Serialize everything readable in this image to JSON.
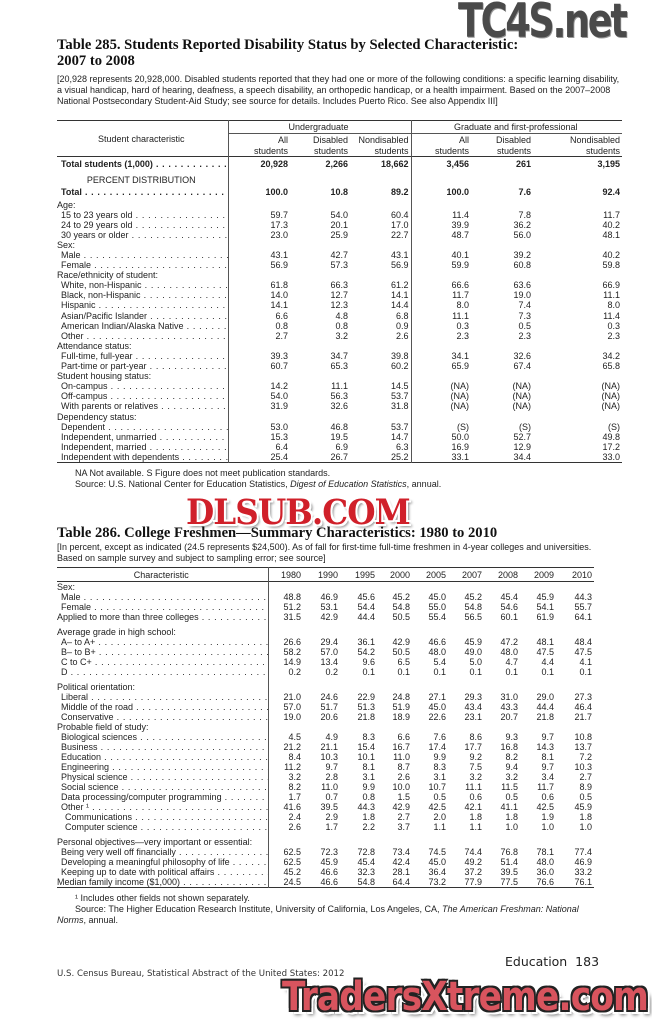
{
  "watermarks": {
    "top": "TC4S.net",
    "middle": "DLSUB.COM",
    "bottom": "TradersXtreme.com"
  },
  "t285": {
    "title_line1": "Table 285. Students Reported Disability Status by Selected Characteristic:",
    "title_line2": "2007 to 2008",
    "note": "[20,928 represents 20,928,000. Disabled students reported that they had one or more of the following conditions: a specific learning disability, a visual handicap, hard of hearing, deafness, a speech disability, an orthopedic handicap, or a health impairment. Based on the 2007–2008 National Postsecondary Student-Aid Study; see source for details. Includes Puerto Rico. See also Appendix III]",
    "header": {
      "stub": "Student characteristic",
      "groups": [
        "Undergraduate",
        "Graduate and first-professional"
      ],
      "columns": [
        "All\nstudents",
        "Disabled\nstudents",
        "Nondisabled\nstudents",
        "All\nstudents",
        "Disabled\nstudents",
        "Nondisabled\nstudents"
      ]
    },
    "sections": [
      {
        "rows": [
          {
            "kind": "data",
            "label": "Total students (1,000)",
            "indent": 0,
            "emphasis": true,
            "values": [
              "20,928",
              "2,266",
              "18,662",
              "3,456",
              "261",
              "3,195"
            ]
          },
          {
            "kind": "center",
            "label": "PERCENT DISTRIBUTION"
          },
          {
            "kind": "data",
            "label": "Total",
            "indent": 0,
            "emphasis": true,
            "values": [
              "100.0",
              "10.8",
              "89.2",
              "100.0",
              "7.6",
              "92.4"
            ]
          },
          {
            "kind": "group",
            "label": "Age:"
          },
          {
            "kind": "data",
            "label": "15 to 23 years old",
            "indent": 1,
            "values": [
              "59.7",
              "54.0",
              "60.4",
              "11.4",
              "7.8",
              "11.7"
            ]
          },
          {
            "kind": "data",
            "label": "24 to 29 years old",
            "indent": 1,
            "values": [
              "17.3",
              "20.1",
              "17.0",
              "39.9",
              "36.2",
              "40.2"
            ]
          },
          {
            "kind": "data",
            "label": "30 years or older",
            "indent": 1,
            "values": [
              "23.0",
              "25.9",
              "22.7",
              "48.7",
              "56.0",
              "48.1"
            ]
          },
          {
            "kind": "group",
            "label": "Sex:"
          },
          {
            "kind": "data",
            "label": "Male",
            "indent": 1,
            "values": [
              "43.1",
              "42.7",
              "43.1",
              "40.1",
              "39.2",
              "40.2"
            ]
          },
          {
            "kind": "data",
            "label": "Female",
            "indent": 1,
            "values": [
              "56.9",
              "57.3",
              "56.9",
              "59.9",
              "60.8",
              "59.8"
            ]
          },
          {
            "kind": "group",
            "label": "Race/ethnicity of student:"
          },
          {
            "kind": "data",
            "label": "White, non-Hispanic",
            "indent": 1,
            "values": [
              "61.8",
              "66.3",
              "61.2",
              "66.6",
              "63.6",
              "66.9"
            ]
          },
          {
            "kind": "data",
            "label": "Black, non-Hispanic",
            "indent": 1,
            "values": [
              "14.0",
              "12.7",
              "14.1",
              "11.7",
              "19.0",
              "11.1"
            ]
          },
          {
            "kind": "data",
            "label": "Hispanic",
            "indent": 1,
            "values": [
              "14.1",
              "12.3",
              "14.4",
              "8.0",
              "7.4",
              "8.0"
            ]
          },
          {
            "kind": "data",
            "label": "Asian/Pacific Islander",
            "indent": 1,
            "values": [
              "6.6",
              "4.8",
              "6.8",
              "11.1",
              "7.3",
              "11.4"
            ]
          },
          {
            "kind": "data",
            "label": "American Indian/Alaska Native",
            "indent": 1,
            "values": [
              "0.8",
              "0.8",
              "0.9",
              "0.3",
              "0.5",
              "0.3"
            ]
          },
          {
            "kind": "data",
            "label": "Other",
            "indent": 1,
            "values": [
              "2.7",
              "3.2",
              "2.6",
              "2.3",
              "2.3",
              "2.3"
            ]
          },
          {
            "kind": "group",
            "label": "Attendance status:"
          },
          {
            "kind": "data",
            "label": "Full-time, full-year",
            "indent": 1,
            "values": [
              "39.3",
              "34.7",
              "39.8",
              "34.1",
              "32.6",
              "34.2"
            ]
          },
          {
            "kind": "data",
            "label": "Part-time or part-year",
            "indent": 1,
            "values": [
              "60.7",
              "65.3",
              "60.2",
              "65.9",
              "67.4",
              "65.8"
            ]
          },
          {
            "kind": "group",
            "label": "Student housing status:"
          },
          {
            "kind": "data",
            "label": "On-campus",
            "indent": 1,
            "values": [
              "14.2",
              "11.1",
              "14.5",
              "(NA)",
              "(NA)",
              "(NA)"
            ]
          },
          {
            "kind": "data",
            "label": "Off-campus",
            "indent": 1,
            "values": [
              "54.0",
              "56.3",
              "53.7",
              "(NA)",
              "(NA)",
              "(NA)"
            ]
          },
          {
            "kind": "data",
            "label": "With parents or relatives",
            "indent": 1,
            "values": [
              "31.9",
              "32.6",
              "31.8",
              "(NA)",
              "(NA)",
              "(NA)"
            ]
          },
          {
            "kind": "group",
            "label": "Dependency status:"
          },
          {
            "kind": "data",
            "label": "Dependent",
            "indent": 1,
            "values": [
              "53.0",
              "46.8",
              "53.7",
              "(S)",
              "(S)",
              "(S)"
            ]
          },
          {
            "kind": "data",
            "label": "Independent, unmarried",
            "indent": 1,
            "values": [
              "15.3",
              "19.5",
              "14.7",
              "50.0",
              "52.7",
              "49.8"
            ]
          },
          {
            "kind": "data",
            "label": "Independent, married",
            "indent": 1,
            "values": [
              "6.4",
              "6.9",
              "6.3",
              "16.9",
              "12.9",
              "17.2"
            ]
          },
          {
            "kind": "data",
            "label": "Independent with dependents",
            "indent": 1,
            "values": [
              "25.4",
              "26.7",
              "25.2",
              "33.1",
              "34.4",
              "33.0"
            ]
          }
        ]
      }
    ],
    "footnotes": {
      "na": "NA Not available. S Figure does not meet publication standards.",
      "source_prefix": "Source: U.S. National Center for Education Statistics, ",
      "source_italic": "Digest of Education Statistics",
      "source_suffix": ", annual."
    }
  },
  "t286": {
    "title": "Table 286. College Freshmen—Summary Characteristics: 1980 to 2010",
    "note": "[In percent, except as indicated (24.5 represents $24,500). As of fall for first-time full-time freshmen in 4-year colleges and universities. Based on sample survey and subject to sampling error; see source]",
    "header": {
      "stub": "Characteristic",
      "columns": [
        "1980",
        "1990",
        "1995",
        "2000",
        "2005",
        "2007",
        "2008",
        "2009",
        "2010"
      ]
    },
    "sections": [
      {
        "rows": [
          {
            "kind": "group",
            "label": "Sex:"
          },
          {
            "kind": "data",
            "label": "Male",
            "indent": 1,
            "values": [
              "48.8",
              "46.9",
              "45.6",
              "45.2",
              "45.0",
              "45.2",
              "45.4",
              "45.9",
              "44.3"
            ]
          },
          {
            "kind": "data",
            "label": "Female",
            "indent": 1,
            "values": [
              "51.2",
              "53.1",
              "54.4",
              "54.8",
              "55.0",
              "54.8",
              "54.6",
              "54.1",
              "55.7"
            ]
          },
          {
            "kind": "data",
            "label": "Applied to more than three colleges",
            "indent": 0,
            "values": [
              "31.5",
              "42.9",
              "44.4",
              "50.5",
              "55.4",
              "56.5",
              "60.1",
              "61.9",
              "64.1"
            ]
          }
        ]
      },
      {
        "rows": [
          {
            "kind": "group",
            "label": "Average grade in high school:"
          },
          {
            "kind": "data",
            "label": "A– to A+",
            "indent": 1,
            "values": [
              "26.6",
              "29.4",
              "36.1",
              "42.9",
              "46.6",
              "45.9",
              "47.2",
              "48.1",
              "48.4"
            ]
          },
          {
            "kind": "data",
            "label": "B– to B+",
            "indent": 1,
            "values": [
              "58.2",
              "57.0",
              "54.2",
              "50.5",
              "48.0",
              "49.0",
              "48.0",
              "47.5",
              "47.5"
            ]
          },
          {
            "kind": "data",
            "label": "C to C+",
            "indent": 1,
            "values": [
              "14.9",
              "13.4",
              "9.6",
              "6.5",
              "5.4",
              "5.0",
              "4.7",
              "4.4",
              "4.1"
            ]
          },
          {
            "kind": "data",
            "label": "D",
            "indent": 1,
            "values": [
              "0.2",
              "0.2",
              "0.1",
              "0.1",
              "0.1",
              "0.1",
              "0.1",
              "0.1",
              "0.1"
            ]
          }
        ]
      },
      {
        "rows": [
          {
            "kind": "group",
            "label": "Political orientation:"
          },
          {
            "kind": "data",
            "label": "Liberal",
            "indent": 1,
            "values": [
              "21.0",
              "24.6",
              "22.9",
              "24.8",
              "27.1",
              "29.3",
              "31.0",
              "29.0",
              "27.3"
            ]
          },
          {
            "kind": "data",
            "label": "Middle of the road",
            "indent": 1,
            "values": [
              "57.0",
              "51.7",
              "51.3",
              "51.9",
              "45.0",
              "43.4",
              "43.3",
              "44.4",
              "46.4"
            ]
          },
          {
            "kind": "data",
            "label": "Conservative",
            "indent": 1,
            "values": [
              "19.0",
              "20.6",
              "21.8",
              "18.9",
              "22.6",
              "23.1",
              "20.7",
              "21.8",
              "21.7"
            ]
          },
          {
            "kind": "group",
            "label": "Probable field of study:"
          },
          {
            "kind": "data",
            "label": "Biological sciences",
            "indent": 1,
            "values": [
              "4.5",
              "4.9",
              "8.3",
              "6.6",
              "7.6",
              "8.6",
              "9.3",
              "9.7",
              "10.8"
            ]
          },
          {
            "kind": "data",
            "label": "Business",
            "indent": 1,
            "values": [
              "21.2",
              "21.1",
              "15.4",
              "16.7",
              "17.4",
              "17.7",
              "16.8",
              "14.3",
              "13.7"
            ]
          },
          {
            "kind": "data",
            "label": "Education",
            "indent": 1,
            "values": [
              "8.4",
              "10.3",
              "10.1",
              "11.0",
              "9.9",
              "9.2",
              "8.2",
              "8.1",
              "7.2"
            ]
          },
          {
            "kind": "data",
            "label": "Engineering",
            "indent": 1,
            "values": [
              "11.2",
              "9.7",
              "8.1",
              "8.7",
              "8.3",
              "7.5",
              "9.4",
              "9.7",
              "10.3"
            ]
          },
          {
            "kind": "data",
            "label": "Physical science",
            "indent": 1,
            "values": [
              "3.2",
              "2.8",
              "3.1",
              "2.6",
              "3.1",
              "3.2",
              "3.2",
              "3.4",
              "2.7"
            ]
          },
          {
            "kind": "data",
            "label": "Social science",
            "indent": 1,
            "values": [
              "8.2",
              "11.0",
              "9.9",
              "10.0",
              "10.7",
              "11.1",
              "11.5",
              "11.7",
              "8.9"
            ]
          },
          {
            "kind": "data",
            "label": "Data processing/computer programming",
            "indent": 1,
            "values": [
              "1.7",
              "0.7",
              "0.8",
              "1.5",
              "0.5",
              "0.6",
              "0.5",
              "0.6",
              "0.5"
            ]
          },
          {
            "kind": "data",
            "label": "Other ¹",
            "indent": 1,
            "values": [
              "41.6",
              "39.5",
              "44.3",
              "42.9",
              "42.5",
              "42.1",
              "41.1",
              "42.5",
              "45.9"
            ]
          },
          {
            "kind": "data",
            "label": "Communications",
            "indent": 2,
            "values": [
              "2.4",
              "2.9",
              "1.8",
              "2.7",
              "2.0",
              "1.8",
              "1.8",
              "1.9",
              "1.8"
            ]
          },
          {
            "kind": "data",
            "label": "Computer science",
            "indent": 2,
            "values": [
              "2.6",
              "1.7",
              "2.2",
              "3.7",
              "1.1",
              "1.1",
              "1.0",
              "1.0",
              "1.0"
            ]
          }
        ]
      },
      {
        "rows": [
          {
            "kind": "group",
            "label": "Personal objectives—very important or essential:"
          },
          {
            "kind": "data",
            "label": "Being very well off financially",
            "indent": 1,
            "values": [
              "62.5",
              "72.3",
              "72.8",
              "73.4",
              "74.5",
              "74.4",
              "76.8",
              "78.1",
              "77.4"
            ]
          },
          {
            "kind": "data",
            "label": "Developing a meaningful philosophy of life",
            "indent": 1,
            "values": [
              "62.5",
              "45.9",
              "45.4",
              "42.4",
              "45.0",
              "49.2",
              "51.4",
              "48.0",
              "46.9"
            ]
          },
          {
            "kind": "data",
            "label": "Keeping up to date with political affairs",
            "indent": 1,
            "values": [
              "45.2",
              "46.6",
              "32.3",
              "28.1",
              "36.4",
              "37.2",
              "39.5",
              "36.0",
              "33.2"
            ]
          },
          {
            "kind": "data",
            "label": "Median family income ($1,000)",
            "indent": 0,
            "values": [
              "24.5",
              "46.6",
              "54.8",
              "64.4",
              "73.2",
              "77.9",
              "77.5",
              "76.6",
              "76.1"
            ]
          }
        ]
      }
    ],
    "footnotes": {
      "note1": "¹ Includes other fields not shown separately.",
      "source_prefix": "Source: The Higher Education Research Institute, University of California, Los Angeles, CA, ",
      "source_italic": "The American Freshman: National Norms",
      "source_suffix": ", annual."
    }
  },
  "footer": {
    "running_head": "Education  183",
    "publication": "U.S. Census Bureau, Statistical Abstract of the United States: 2012"
  }
}
